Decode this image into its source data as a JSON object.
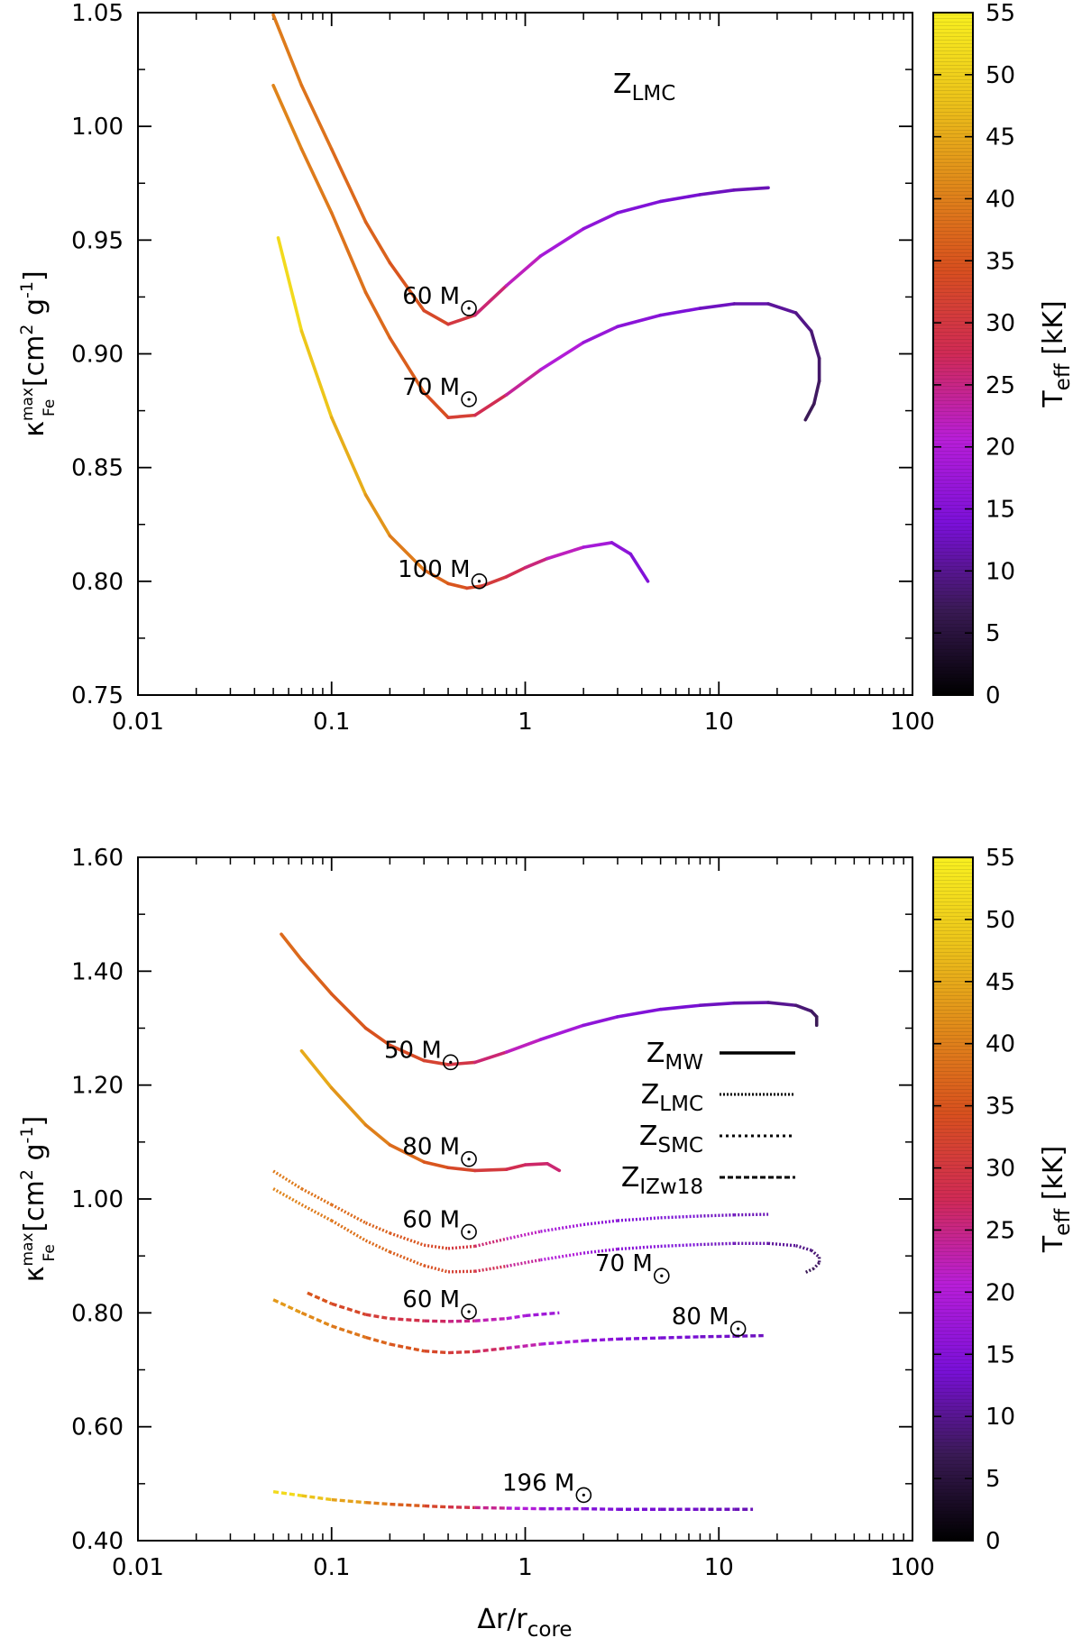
{
  "figure": {
    "xlabel_main": "Δr/r",
    "xlabel_sub": "core",
    "ylabel_kappa": "κ",
    "ylabel_sup": "max",
    "ylabel_sub": "Fe",
    "ylabel_units_open": "[cm",
    "ylabel_units_two": "2",
    "ylabel_units_g": "g",
    "ylabel_units_minus_one": "-1",
    "ylabel_units_close": "]",
    "colorbar_label_main": "T",
    "colorbar_label_sub": "eff",
    "colorbar_label_unit": "[kK]",
    "msun_unit": "M"
  },
  "colors": {
    "colormap": [
      "#000000",
      "#3a1a55",
      "#7a10d8",
      "#b81ed8",
      "#d02a55",
      "#d8501e",
      "#e08a1a",
      "#ecc41a",
      "#f8f020"
    ]
  },
  "chart_data": [
    {
      "id": "top",
      "type": "line",
      "xscale": "log",
      "xlim": [
        0.01,
        100
      ],
      "ylim": [
        0.75,
        1.05
      ],
      "xticks": [
        "0.01",
        "0.1",
        "1",
        "10",
        "100"
      ],
      "yticks": [
        "0.75",
        "0.80",
        "0.85",
        "0.90",
        "0.95",
        "1.00",
        "1.05"
      ],
      "colorbar": {
        "label": "Teff [kK]",
        "range": [
          0,
          55
        ],
        "ticks": [
          "0",
          "5",
          "10",
          "15",
          "20",
          "25",
          "30",
          "35",
          "40",
          "45",
          "50",
          "55"
        ]
      },
      "annotation": {
        "main": "Z",
        "sub": "LMC"
      },
      "series": [
        {
          "label": "60 M",
          "style": "solid",
          "x": [
            0.05,
            0.07,
            0.1,
            0.15,
            0.2,
            0.3,
            0.4,
            0.55,
            0.8,
            1.2,
            2,
            3,
            5,
            8,
            12,
            18
          ],
          "y": [
            1.049,
            1.018,
            0.99,
            0.958,
            0.94,
            0.919,
            0.913,
            0.917,
            0.93,
            0.943,
            0.955,
            0.962,
            0.967,
            0.97,
            0.972,
            0.973
          ],
          "t": [
            40,
            39,
            38,
            37,
            36,
            34,
            32,
            28,
            24,
            20,
            17,
            15,
            14,
            13,
            12,
            12
          ]
        },
        {
          "label": "70 M",
          "style": "solid",
          "x": [
            0.05,
            0.07,
            0.1,
            0.15,
            0.2,
            0.3,
            0.4,
            0.55,
            0.8,
            1.2,
            2,
            3,
            5,
            8,
            12,
            18,
            25,
            30,
            33,
            33,
            31,
            28
          ],
          "y": [
            1.018,
            0.99,
            0.962,
            0.927,
            0.907,
            0.883,
            0.872,
            0.873,
            0.882,
            0.893,
            0.905,
            0.912,
            0.917,
            0.92,
            0.922,
            0.922,
            0.918,
            0.91,
            0.898,
            0.888,
            0.878,
            0.871
          ],
          "t": [
            41,
            40,
            39,
            38,
            37,
            35,
            33,
            30,
            26,
            22,
            18,
            16,
            15,
            13,
            12,
            11,
            10,
            9,
            8,
            8,
            7,
            7
          ]
        },
        {
          "label": "100 M",
          "style": "solid",
          "x": [
            0.053,
            0.07,
            0.1,
            0.15,
            0.2,
            0.3,
            0.4,
            0.5,
            0.6,
            0.8,
            1.0,
            1.3,
            2,
            2.8,
            3.5,
            4.3
          ],
          "y": [
            0.951,
            0.91,
            0.872,
            0.838,
            0.82,
            0.805,
            0.799,
            0.797,
            0.798,
            0.802,
            0.806,
            0.81,
            0.815,
            0.817,
            0.812,
            0.8
          ],
          "t": [
            53,
            50,
            47,
            44,
            41,
            38,
            36,
            34,
            32,
            29,
            27,
            24,
            20,
            17,
            15,
            14
          ]
        }
      ],
      "labels": [
        {
          "text": "60 M",
          "x": 0.46,
          "y": 0.922
        },
        {
          "text": "70 M",
          "x": 0.46,
          "y": 0.882
        },
        {
          "text": "100 M",
          "x": 0.52,
          "y": 0.802
        }
      ]
    },
    {
      "id": "bottom",
      "type": "line",
      "xscale": "log",
      "xlim": [
        0.01,
        100
      ],
      "ylim": [
        0.4,
        1.6
      ],
      "xticks": [
        "0.01",
        "0.1",
        "1",
        "10",
        "100"
      ],
      "yticks": [
        "0.40",
        "0.60",
        "0.80",
        "1.00",
        "1.20",
        "1.40",
        "1.60"
      ],
      "colorbar": {
        "label": "Teff [kK]",
        "range": [
          0,
          55
        ],
        "ticks": [
          "0",
          "5",
          "10",
          "15",
          "20",
          "25",
          "30",
          "35",
          "40",
          "45",
          "50",
          "55"
        ]
      },
      "legend": [
        {
          "main": "Z",
          "sub": "MW",
          "style": "solid"
        },
        {
          "main": "Z",
          "sub": "LMC",
          "style": "lmc"
        },
        {
          "main": "Z",
          "sub": "SMC",
          "style": "smc"
        },
        {
          "main": "Z",
          "sub": "IZw18",
          "style": "izw"
        }
      ],
      "series": [
        {
          "label": "50 M",
          "style": "solid",
          "x": [
            0.055,
            0.07,
            0.1,
            0.15,
            0.2,
            0.3,
            0.4,
            0.55,
            0.8,
            1.2,
            2,
            3,
            5,
            8,
            12,
            18,
            25,
            30,
            32,
            32
          ],
          "y": [
            1.465,
            1.42,
            1.36,
            1.3,
            1.27,
            1.243,
            1.236,
            1.24,
            1.258,
            1.28,
            1.305,
            1.32,
            1.333,
            1.34,
            1.344,
            1.345,
            1.34,
            1.33,
            1.32,
            1.305
          ],
          "t": [
            38,
            37,
            36,
            35,
            34,
            33,
            31,
            28,
            24,
            20,
            17,
            15,
            14,
            13,
            12,
            11,
            9,
            8,
            7,
            7
          ]
        },
        {
          "label": "80 M",
          "style": "solid",
          "x": [
            0.07,
            0.1,
            0.15,
            0.2,
            0.3,
            0.4,
            0.55,
            0.8,
            1.0,
            1.3,
            1.5
          ],
          "y": [
            1.26,
            1.195,
            1.13,
            1.095,
            1.065,
            1.055,
            1.05,
            1.052,
            1.06,
            1.062,
            1.05
          ],
          "t": [
            46,
            44,
            41,
            39,
            36,
            34,
            32,
            29,
            27,
            26,
            26
          ]
        },
        {
          "label": "60 M",
          "style": "lmc",
          "x": [
            0.05,
            0.07,
            0.1,
            0.15,
            0.2,
            0.3,
            0.4,
            0.55,
            0.8,
            1.2,
            2,
            3,
            5,
            8,
            12,
            18
          ],
          "y": [
            1.049,
            1.018,
            0.99,
            0.958,
            0.94,
            0.919,
            0.913,
            0.917,
            0.93,
            0.943,
            0.955,
            0.962,
            0.967,
            0.97,
            0.972,
            0.973
          ],
          "t": [
            40,
            39,
            38,
            37,
            36,
            34,
            32,
            28,
            24,
            20,
            17,
            15,
            14,
            13,
            12,
            12
          ]
        },
        {
          "label": "70 M",
          "style": "lmc",
          "x": [
            0.05,
            0.07,
            0.1,
            0.15,
            0.2,
            0.3,
            0.4,
            0.55,
            0.8,
            1.2,
            2,
            3,
            5,
            8,
            12,
            18,
            25,
            30,
            33,
            33,
            31,
            28
          ],
          "y": [
            1.018,
            0.99,
            0.962,
            0.927,
            0.907,
            0.883,
            0.872,
            0.873,
            0.882,
            0.893,
            0.905,
            0.912,
            0.917,
            0.92,
            0.922,
            0.922,
            0.918,
            0.91,
            0.898,
            0.888,
            0.878,
            0.871
          ],
          "t": [
            41,
            40,
            39,
            38,
            37,
            35,
            33,
            30,
            26,
            22,
            18,
            16,
            15,
            13,
            12,
            11,
            10,
            9,
            8,
            8,
            7,
            7
          ]
        },
        {
          "label": "60 M",
          "style": "izw",
          "x": [
            0.075,
            0.1,
            0.15,
            0.2,
            0.3,
            0.4,
            0.55,
            0.8,
            1.0,
            1.5
          ],
          "y": [
            0.835,
            0.816,
            0.797,
            0.79,
            0.786,
            0.785,
            0.786,
            0.79,
            0.795,
            0.8
          ],
          "t": [
            36,
            34,
            32,
            30,
            28,
            26,
            24,
            21,
            19,
            17
          ]
        },
        {
          "label": "80 M",
          "style": "izw",
          "x": [
            0.05,
            0.07,
            0.1,
            0.15,
            0.2,
            0.3,
            0.4,
            0.55,
            0.8,
            1.2,
            2,
            3,
            5,
            8,
            12,
            17
          ],
          "y": [
            0.823,
            0.8,
            0.777,
            0.757,
            0.745,
            0.733,
            0.73,
            0.732,
            0.738,
            0.745,
            0.751,
            0.754,
            0.756,
            0.758,
            0.759,
            0.76
          ],
          "t": [
            44,
            42,
            40,
            38,
            36,
            34,
            32,
            29,
            25,
            21,
            17,
            15,
            14,
            13,
            13,
            12
          ]
        },
        {
          "label": "196 M",
          "style": "izw",
          "x": [
            0.05,
            0.07,
            0.1,
            0.15,
            0.2,
            0.3,
            0.4,
            0.55,
            0.8,
            1.2,
            2,
            3,
            5,
            8,
            12,
            15
          ],
          "y": [
            0.486,
            0.479,
            0.472,
            0.467,
            0.464,
            0.461,
            0.459,
            0.458,
            0.457,
            0.456,
            0.456,
            0.455,
            0.455,
            0.455,
            0.455,
            0.455
          ],
          "t": [
            53,
            50,
            46,
            42,
            38,
            34,
            31,
            27,
            22,
            18,
            15,
            14,
            13,
            13,
            12,
            12
          ]
        }
      ],
      "labels": [
        {
          "text": "50 M",
          "x": 0.37,
          "y": 1.248
        },
        {
          "text": "80 M",
          "x": 0.46,
          "y": 1.078
        },
        {
          "text": "60 M",
          "x": 0.46,
          "y": 0.95
        },
        {
          "text": "70 M",
          "x": 4.55,
          "y": 0.873
        },
        {
          "text": "60 M",
          "x": 0.46,
          "y": 0.81
        },
        {
          "text": "80 M",
          "x": 11.3,
          "y": 0.78
        },
        {
          "text": "196 M",
          "x": 1.8,
          "y": 0.488
        }
      ]
    }
  ]
}
